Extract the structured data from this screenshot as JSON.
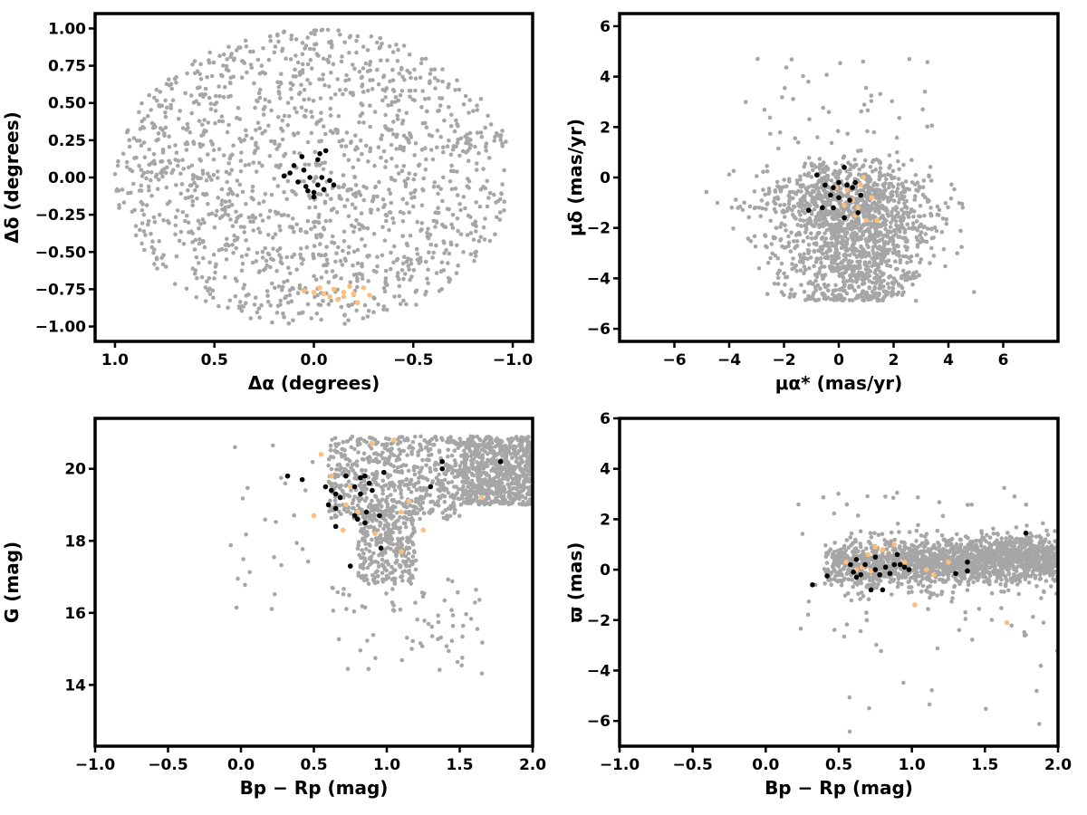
{
  "colors": {
    "field": "#a6a6a6",
    "members": "#000000",
    "secondary": "#fdbf7d"
  },
  "chart_data": [
    {
      "type": "scatter",
      "id": "sky",
      "xlabel": "Δα (degrees)",
      "ylabel": "Δδ (degrees)",
      "xlim": [
        1.1,
        -1.1
      ],
      "ylim": [
        -1.1,
        1.1
      ],
      "xticks": [
        1.0,
        0.5,
        0.0,
        -0.5,
        -1.0
      ],
      "xtick_labels": [
        "1.0",
        "0.5",
        "0.0",
        "−0.5",
        "−1.0"
      ],
      "yticks": [
        -1.0,
        -0.75,
        -0.5,
        -0.25,
        0.0,
        0.25,
        0.5,
        0.75,
        1.0
      ],
      "ytick_labels": [
        "−1.00",
        "−0.75",
        "−0.50",
        "−0.25",
        "0.00",
        "0.25",
        "0.50",
        "0.75",
        "1.00"
      ],
      "grid": false,
      "field": {
        "shape": "disk",
        "n": 1500,
        "radius": 1.0
      },
      "members": [
        [
          0.1,
          0.08
        ],
        [
          0.05,
          0.05
        ],
        [
          0.02,
          0.0
        ],
        [
          -0.02,
          -0.05
        ],
        [
          -0.05,
          -0.08
        ],
        [
          0.0,
          -0.1
        ],
        [
          0.04,
          -0.06
        ],
        [
          -0.08,
          -0.02
        ],
        [
          0.06,
          0.14
        ],
        [
          -0.03,
          0.16
        ],
        [
          -0.06,
          0.18
        ],
        [
          0.15,
          0.01
        ],
        [
          0.08,
          -0.03
        ],
        [
          -0.1,
          -0.05
        ],
        [
          0.0,
          -0.13
        ],
        [
          -0.04,
          0.0
        ],
        [
          0.03,
          -0.09
        ],
        [
          0.12,
          0.03
        ],
        [
          -0.02,
          0.12
        ]
      ],
      "secondary": [
        [
          0.0,
          -0.77
        ],
        [
          0.05,
          -0.76
        ],
        [
          -0.05,
          -0.78
        ],
        [
          -0.1,
          -0.75
        ],
        [
          -0.15,
          -0.8
        ],
        [
          -0.2,
          -0.78
        ],
        [
          -0.25,
          -0.74
        ],
        [
          -0.22,
          -0.84
        ],
        [
          -0.12,
          -0.82
        ],
        [
          -0.18,
          -0.73
        ],
        [
          -0.28,
          -0.79
        ],
        [
          -0.08,
          -0.8
        ],
        [
          -0.03,
          -0.74
        ],
        [
          -0.15,
          -0.77
        ]
      ]
    },
    {
      "type": "scatter",
      "id": "proper-motion",
      "xlabel": "μα* (mas/yr)",
      "ylabel": "μδ (mas/yr)",
      "xlim": [
        -8,
        8
      ],
      "ylim": [
        -6.5,
        6.5
      ],
      "xticks": [
        -6,
        -4,
        -2,
        0,
        2,
        4,
        6
      ],
      "xtick_labels": [
        "−6",
        "−4",
        "−2",
        "0",
        "2",
        "4",
        "6"
      ],
      "yticks": [
        -6,
        -4,
        -2,
        0,
        2,
        4,
        6
      ],
      "ytick_labels": [
        "−6",
        "−4",
        "−2",
        "0",
        "2",
        "4",
        "6"
      ],
      "grid": false,
      "field": {
        "shape": "clump",
        "n": 1600
      },
      "members": [
        [
          -0.8,
          0.1
        ],
        [
          -0.5,
          -0.3
        ],
        [
          -0.2,
          -0.4
        ],
        [
          0.0,
          -0.2
        ],
        [
          0.2,
          0.4
        ],
        [
          0.3,
          -0.3
        ],
        [
          0.5,
          -0.4
        ],
        [
          0.6,
          -0.2
        ],
        [
          0.8,
          -0.7
        ],
        [
          -0.2,
          -1.2
        ],
        [
          -1.1,
          -1.3
        ],
        [
          0.2,
          -1.6
        ],
        [
          -0.6,
          -1.2
        ],
        [
          0.4,
          -0.9
        ],
        [
          0.0,
          -0.8
        ],
        [
          0.7,
          -1.4
        ],
        [
          -0.3,
          -0.7
        ]
      ],
      "secondary": [
        [
          0.3,
          -0.5
        ],
        [
          0.5,
          -0.9
        ],
        [
          0.7,
          -1.2
        ],
        [
          0.9,
          0.0
        ],
        [
          1.0,
          -1.7
        ],
        [
          1.4,
          -1.7
        ],
        [
          0.6,
          -1.5
        ],
        [
          0.2,
          -1.1
        ],
        [
          -0.1,
          -0.4
        ],
        [
          1.2,
          -0.8
        ],
        [
          0.8,
          -0.3
        ]
      ]
    },
    {
      "type": "scatter",
      "id": "cmd",
      "xlabel": "Bp − Rp (mag)",
      "ylabel": "G (mag)",
      "xlim": [
        -1.0,
        2.0
      ],
      "ylim": [
        12.3,
        21.4
      ],
      "xticks": [
        -1.0,
        -0.5,
        0.0,
        0.5,
        1.0,
        1.5,
        2.0
      ],
      "xtick_labels": [
        "−1.0",
        "−0.5",
        "0.0",
        "0.5",
        "1.0",
        "1.5",
        "2.0"
      ],
      "yticks": [
        14,
        16,
        18,
        20
      ],
      "ytick_labels": [
        "14",
        "16",
        "18",
        "20"
      ],
      "grid": false,
      "field": {
        "shape": "cmd",
        "n": 1700
      },
      "members": [
        [
          0.32,
          19.8
        ],
        [
          0.42,
          19.7
        ],
        [
          0.58,
          19.5
        ],
        [
          0.62,
          19.4
        ],
        [
          0.65,
          19.3
        ],
        [
          0.68,
          19.2
        ],
        [
          0.6,
          19.0
        ],
        [
          0.65,
          18.9
        ],
        [
          0.72,
          19.8
        ],
        [
          0.78,
          19.5
        ],
        [
          0.82,
          19.3
        ],
        [
          0.85,
          19.8
        ],
        [
          0.88,
          19.6
        ],
        [
          0.9,
          19.4
        ],
        [
          0.95,
          18.7
        ],
        [
          0.98,
          19.9
        ],
        [
          0.8,
          18.6
        ],
        [
          0.85,
          18.5
        ],
        [
          0.78,
          18.7
        ],
        [
          0.86,
          18.8
        ],
        [
          0.65,
          18.4
        ],
        [
          0.75,
          17.3
        ],
        [
          0.96,
          17.8
        ],
        [
          1.3,
          19.5
        ],
        [
          1.38,
          20.2
        ],
        [
          1.38,
          20.0
        ],
        [
          1.78,
          20.2
        ],
        [
          0.82,
          19.75
        ]
      ],
      "secondary": [
        [
          0.55,
          20.4
        ],
        [
          0.62,
          19.8
        ],
        [
          0.5,
          18.7
        ],
        [
          0.7,
          18.3
        ],
        [
          0.75,
          19.5
        ],
        [
          0.8,
          18.8
        ],
        [
          0.9,
          20.7
        ],
        [
          1.05,
          20.8
        ],
        [
          1.1,
          18.8
        ],
        [
          1.15,
          19.1
        ],
        [
          1.1,
          17.7
        ],
        [
          1.25,
          18.3
        ],
        [
          1.65,
          19.2
        ],
        [
          0.92,
          18.2
        ],
        [
          0.72,
          19.0
        ]
      ]
    },
    {
      "type": "scatter",
      "id": "parallax",
      "xlabel": "Bp − Rp (mag)",
      "ylabel": "ϖ (mas)",
      "xlim": [
        -1.0,
        2.0
      ],
      "ylim": [
        -7,
        6
      ],
      "xticks": [
        -1.0,
        -0.5,
        0.0,
        0.5,
        1.0,
        1.5,
        2.0
      ],
      "xtick_labels": [
        "−1.0",
        "−0.5",
        "0.0",
        "0.5",
        "1.0",
        "1.5",
        "2.0"
      ],
      "yticks": [
        -6,
        -4,
        -2,
        0,
        2,
        4,
        6
      ],
      "ytick_labels": [
        "−6",
        "−4",
        "−2",
        "0",
        "2",
        "4",
        "6"
      ],
      "grid": false,
      "field": {
        "shape": "band",
        "n": 1700
      },
      "members": [
        [
          0.32,
          -0.6
        ],
        [
          0.42,
          -0.25
        ],
        [
          0.58,
          0.2
        ],
        [
          0.6,
          -0.1
        ],
        [
          0.62,
          0.4
        ],
        [
          0.65,
          -0.2
        ],
        [
          0.68,
          0.2
        ],
        [
          0.62,
          -0.3
        ],
        [
          0.72,
          -0.8
        ],
        [
          0.75,
          0.0
        ],
        [
          0.78,
          -0.2
        ],
        [
          0.8,
          -0.8
        ],
        [
          0.82,
          0.1
        ],
        [
          0.85,
          -0.15
        ],
        [
          0.88,
          0.2
        ],
        [
          0.9,
          0.6
        ],
        [
          0.95,
          0.1
        ],
        [
          0.92,
          0.2
        ],
        [
          0.98,
          0.0
        ],
        [
          1.3,
          -0.15
        ],
        [
          1.38,
          0.3
        ],
        [
          1.38,
          -0.05
        ],
        [
          1.78,
          1.45
        ],
        [
          0.75,
          0.5
        ]
      ],
      "secondary": [
        [
          0.55,
          0.3
        ],
        [
          0.62,
          0.0
        ],
        [
          0.7,
          0.6
        ],
        [
          0.75,
          0.9
        ],
        [
          0.8,
          0.8
        ],
        [
          0.88,
          1.0
        ],
        [
          0.95,
          0.3
        ],
        [
          1.1,
          0.0
        ],
        [
          1.15,
          -0.2
        ],
        [
          1.25,
          0.3
        ],
        [
          1.65,
          -2.1
        ],
        [
          0.72,
          -0.05
        ],
        [
          0.66,
          0.1
        ],
        [
          1.02,
          -1.4
        ]
      ]
    }
  ]
}
